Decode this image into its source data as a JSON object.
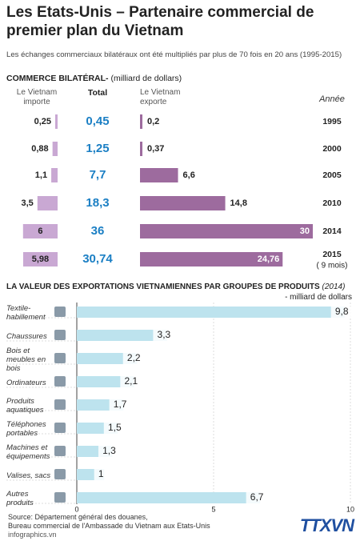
{
  "header": {
    "title": "Les Etats-Unis – Partenaire commercial de premier plan du Vietnam",
    "subtitle": "Les échanges commerciaux bilatéraux ont été multipliés par plus de 70 fois en 20 ans (1995-2015)"
  },
  "chart_data": [
    {
      "type": "trade-table",
      "title": "COMMERCE BILATÉRAL-",
      "unit": "(milliard de dollars)",
      "category_header": "Année",
      "categories": [
        "1995",
        "2000",
        "2005",
        "2010",
        "2014",
        "2015"
      ],
      "category_note": "( 9 mois)",
      "series": [
        {
          "name": "Le Vietnam importe",
          "color": "#c9a8d3",
          "values": [
            0.25,
            0.88,
            1.1,
            3.5,
            6,
            5.98
          ],
          "value_labels": [
            "0,25",
            "0,88",
            "1,1",
            "3,5",
            "6",
            "5,98"
          ]
        },
        {
          "name": "Total",
          "color": "#1b7fc4",
          "values": [
            0.45,
            1.25,
            7.7,
            18.3,
            36,
            30.74
          ],
          "value_labels": [
            "0,45",
            "1,25",
            "7,7",
            "18,3",
            "36",
            "30,74"
          ]
        },
        {
          "name": "Le Vietnam exporte",
          "color": "#9d6b9e",
          "values": [
            0.2,
            0.37,
            6.6,
            14.8,
            30,
            24.76
          ],
          "value_labels": [
            "0,2",
            "0,37",
            "6,6",
            "14,8",
            "30",
            "24,76"
          ]
        }
      ]
    },
    {
      "type": "bar",
      "orientation": "horizontal",
      "title": "LA VALEUR DES EXPORTATIONS VIETNAMIENNES PAR GROUPES DE PRODUITS",
      "subtitle": "(2014)",
      "unit": "- milliard de dollars",
      "categories": [
        "Textile-habillement",
        "Chaussures",
        "Bois et meubles en bois",
        "Ordinateurs",
        "Produits aquatiques",
        "Téléphones portables",
        "Machines et équipements",
        "Valises, sacs",
        "Autres produits"
      ],
      "values": [
        9.8,
        3.3,
        2.2,
        2.1,
        1.7,
        1.5,
        1.3,
        1,
        6.7
      ],
      "value_labels": [
        "9,8",
        "3,3",
        "2,2",
        "2,1",
        "1,7",
        "1,5",
        "1,3",
        "1",
        "6,7"
      ],
      "color": "#bde3ee",
      "xlim": [
        0,
        10
      ],
      "xticks": [
        0,
        5,
        10
      ]
    }
  ],
  "footer": {
    "source": [
      "Source: Département général des douanes,",
      "Bureau commercial de l'Ambassade du Vietnam aux Etats-Unis"
    ],
    "site": "infographics.vn",
    "logo": "TTXVN"
  }
}
